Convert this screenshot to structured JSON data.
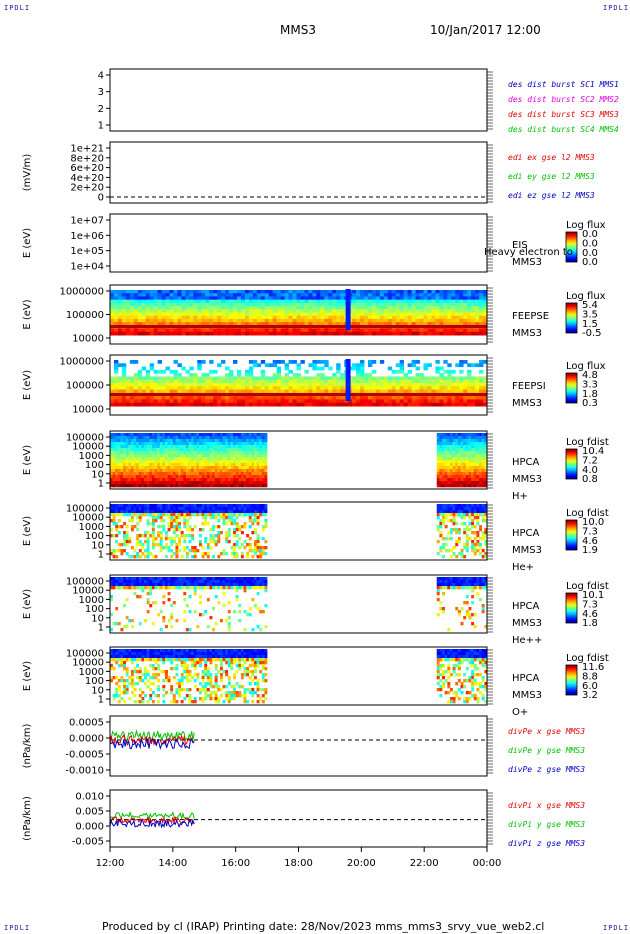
{
  "header": {
    "spacecraft": "MMS3",
    "datetime": "10/Jan/2017 12:00"
  },
  "corners": {
    "tl": "IPDLI",
    "tr": "IPDLI",
    "bl": "IPDLI",
    "br": "IPDLI"
  },
  "footer": {
    "text": "Produced by cl (IRAP)    Printing date: 28/Nov/2023    mms_mms3_srvy_vue_web2.cl"
  },
  "colors": {
    "red": "#e00000",
    "green": "#00c000",
    "blue": "#0000c0",
    "magenta": "#e000e0"
  },
  "chart_data": [
    {
      "type": "line",
      "name": "burst",
      "y_ticks": [
        "4",
        "3",
        "2",
        "1"
      ],
      "legend": [
        "des dist burst SC1 MMS1",
        "des dist burst SC2 MMS2",
        "des dist burst SC3 MMS3",
        "des dist burst SC4 MMS4"
      ]
    },
    {
      "type": "line",
      "name": "edi",
      "ylabel": "(mV/m)",
      "y_ticks": [
        "1e+21",
        "8e+20",
        "6e+20",
        "4e+20",
        "2e+20",
        "0"
      ],
      "legend": [
        "edi ex gse l2 MMS3",
        "edi ey gse l2 MMS3",
        "edi ez gse l2 MMS3"
      ]
    },
    {
      "type": "heatmap",
      "name": "eis",
      "ylabel": "E (eV)",
      "y_ticks": [
        "1e+07",
        "1e+06",
        "1e+05",
        "1e+04"
      ],
      "labels": [
        "EIS",
        "MMS3"
      ],
      "overlay": "Heavy electron to",
      "cbar_title": "Log flux",
      "cbar_ticks": [
        "0.0",
        "0.0",
        "0.0",
        "0.0"
      ]
    },
    {
      "type": "heatmap",
      "name": "feepse",
      "ylabel": "E (eV)",
      "y_ticks": [
        "1000000",
        "100000",
        "10000"
      ],
      "labels": [
        "FEEPSE",
        "MMS3"
      ],
      "cbar_title": "Log flux",
      "cbar_ticks": [
        "5.4",
        "3.5",
        "1.5",
        "-0.5"
      ]
    },
    {
      "type": "heatmap",
      "name": "feepsi",
      "ylabel": "E (eV)",
      "y_ticks": [
        "1000000",
        "100000",
        "10000"
      ],
      "labels": [
        "FEEPSI",
        "MMS3"
      ],
      "cbar_title": "Log flux",
      "cbar_ticks": [
        "4.8",
        "3.3",
        "1.8",
        "0.3"
      ]
    },
    {
      "type": "heatmap",
      "name": "hpca_h",
      "ylabel": "E (eV)",
      "y_ticks": [
        "100000",
        "10000",
        "1000",
        "100",
        "10",
        "1"
      ],
      "labels": [
        "HPCA",
        "MMS3",
        "H+"
      ],
      "cbar_title": "Log fdist",
      "cbar_ticks": [
        "10.4",
        "7.2",
        "4.0",
        "0.8"
      ]
    },
    {
      "type": "heatmap",
      "name": "hpca_he",
      "ylabel": "E (eV)",
      "y_ticks": [
        "100000",
        "10000",
        "1000",
        "100",
        "10",
        "1"
      ],
      "labels": [
        "HPCA",
        "MMS3",
        "He+"
      ],
      "cbar_title": "Log fdist",
      "cbar_ticks": [
        "10.0",
        "7.3",
        "4.6",
        "1.9"
      ]
    },
    {
      "type": "heatmap",
      "name": "hpca_hepp",
      "ylabel": "E (eV)",
      "y_ticks": [
        "100000",
        "10000",
        "1000",
        "100",
        "10",
        "1"
      ],
      "labels": [
        "HPCA",
        "MMS3",
        "He++"
      ],
      "cbar_title": "Log fdist",
      "cbar_ticks": [
        "10.1",
        "7.3",
        "4.6",
        "1.8"
      ]
    },
    {
      "type": "heatmap",
      "name": "hpca_o",
      "ylabel": "E (eV)",
      "y_ticks": [
        "100000",
        "10000",
        "1000",
        "100",
        "10",
        "1"
      ],
      "labels": [
        "HPCA",
        "MMS3",
        "O+"
      ],
      "cbar_title": "Log fdist",
      "cbar_ticks": [
        "11.6",
        "8.8",
        "6.0",
        "3.2"
      ]
    },
    {
      "type": "line",
      "name": "divpe",
      "ylabel": "(nPa/km)",
      "y_ticks": [
        "0.0005",
        "0.0000",
        "-0.0005",
        "-0.0010"
      ],
      "legend": [
        "divPe x gse MMS3",
        "divPe y gse MMS3",
        "divPe z gse MMS3"
      ]
    },
    {
      "type": "line",
      "name": "divpi",
      "ylabel": "(nPa/km)",
      "y_ticks": [
        "0.010",
        "0.005",
        "0.000",
        "-0.005"
      ],
      "legend": [
        "divPi x gse MMS3",
        "divPi y gse MMS3",
        "divPi z gse MMS3"
      ]
    }
  ],
  "x_ticks": [
    "12:00",
    "14:00",
    "16:00",
    "18:00",
    "20:00",
    "22:00",
    "00:00"
  ]
}
